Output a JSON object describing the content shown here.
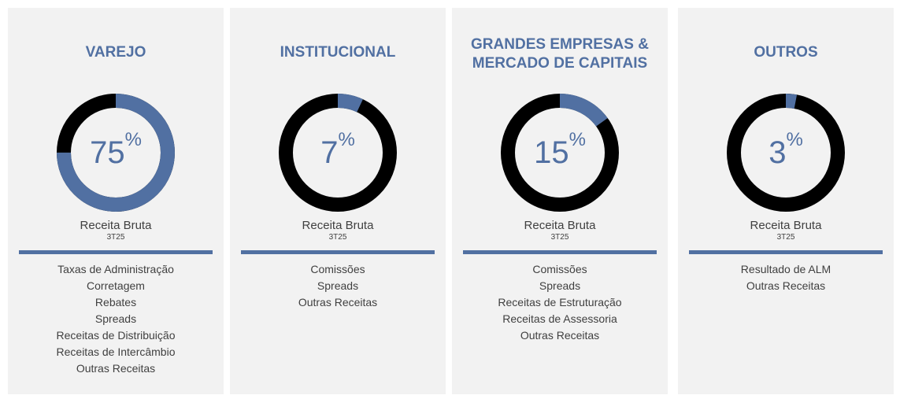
{
  "chart_data": [
    {
      "type": "pie",
      "title": "VAREJO",
      "value": 75,
      "value_label": "75",
      "unit": "%",
      "metric": "Receita Bruta",
      "period": "3T25",
      "items": [
        "Taxas de Administração",
        "Corretagem",
        "Rebates",
        "Spreads",
        "Receitas de Distribuição",
        "Receitas de Intercâmbio",
        "Outras Receitas"
      ]
    },
    {
      "type": "pie",
      "title": "INSTITUCIONAL",
      "value": 7,
      "value_label": "7",
      "unit": "%",
      "metric": "Receita Bruta",
      "period": "3T25",
      "items": [
        "Comissões",
        "Spreads",
        "Outras Receitas"
      ]
    },
    {
      "type": "pie",
      "title": "GRANDES EMPRESAS & MERCADO DE CAPITAIS",
      "title_lines": [
        "GRANDES EMPRESAS &",
        "MERCADO DE CAPITAIS"
      ],
      "value": 15,
      "value_label": "15",
      "unit": "%",
      "metric": "Receita Bruta",
      "period": "3T25",
      "items": [
        "Comissões",
        "Spreads",
        "Receitas de Estruturação",
        "Receitas de Assessoria",
        "Outras Receitas"
      ]
    },
    {
      "type": "pie",
      "title": "OUTROS",
      "value": 3,
      "value_label": "3",
      "unit": "%",
      "metric": "Receita Bruta",
      "period": "3T25",
      "items": [
        "Resultado de ALM",
        "Outras Receitas"
      ]
    }
  ],
  "colors": {
    "accent": "#5170a2",
    "remainder": "#000000",
    "panel": "#f2f2f2",
    "text": "#404040"
  }
}
